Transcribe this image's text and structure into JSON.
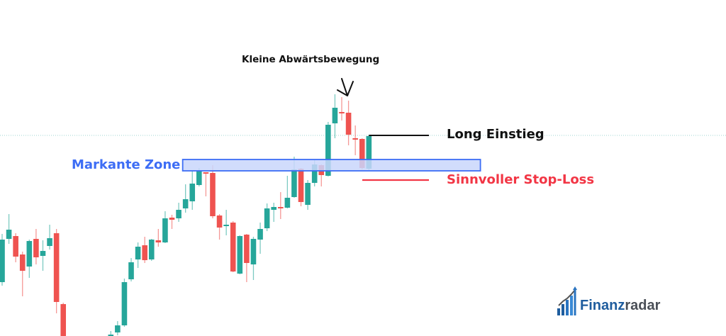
{
  "chart_data": {
    "type": "candlestick",
    "title": "",
    "xlabel": "",
    "ylabel": "",
    "grid": false,
    "colors": {
      "up": "#26a69a",
      "down": "#ef5350",
      "zone_fill": "#c9d6fb",
      "zone_stroke": "#3d6df5",
      "entry_line": "#111111",
      "stop_line": "#f23645",
      "price_line": "#9fd6d0"
    },
    "ylim": [
      0,
      500
    ],
    "candles": [
      [
        102,
        170,
        97,
        162
      ],
      [
        163,
        198,
        156,
        176
      ],
      [
        167,
        171,
        130,
        138
      ],
      [
        141,
        145,
        82,
        118
      ],
      [
        124,
        162,
        108,
        160
      ],
      [
        163,
        177,
        127,
        137
      ],
      [
        139,
        161,
        118,
        146
      ],
      [
        153,
        183,
        148,
        164
      ],
      [
        171,
        177,
        58,
        74
      ],
      [
        71,
        73,
        10,
        20
      ],
      null,
      null,
      null,
      null,
      null,
      null,
      [
        22,
        33,
        18,
        28
      ],
      [
        31,
        47,
        27,
        41
      ],
      [
        41,
        107,
        39,
        102
      ],
      [
        106,
        136,
        103,
        130
      ],
      [
        134,
        158,
        122,
        152
      ],
      [
        154,
        166,
        129,
        133
      ],
      [
        134,
        163,
        132,
        162
      ],
      [
        161,
        177,
        152,
        158
      ],
      [
        158,
        202,
        157,
        192
      ],
      [
        193,
        197,
        177,
        190
      ],
      [
        192,
        214,
        187,
        204
      ],
      [
        206,
        240,
        200,
        219
      ],
      [
        216,
        260,
        204,
        241
      ],
      [
        239,
        263,
        237,
        259
      ],
      [
        257,
        257,
        223,
        256
      ],
      [
        256,
        267,
        192,
        195
      ],
      [
        196,
        198,
        162,
        179
      ],
      [
        182,
        204,
        168,
        183
      ],
      [
        186,
        188,
        116,
        117
      ],
      [
        114,
        168,
        113,
        167
      ],
      [
        169,
        170,
        102,
        129
      ],
      [
        127,
        166,
        105,
        163
      ],
      [
        162,
        186,
        142,
        177
      ],
      [
        178,
        213,
        174,
        206
      ],
      [
        204,
        214,
        187,
        208
      ],
      [
        208,
        229,
        191,
        206
      ],
      [
        207,
        252,
        206,
        221
      ],
      [
        222,
        279,
        221,
        261
      ],
      [
        262,
        263,
        209,
        215
      ],
      [
        211,
        246,
        204,
        242
      ],
      [
        242,
        274,
        237,
        268
      ],
      [
        267,
        268,
        237,
        253
      ],
      [
        252,
        328,
        251,
        324
      ],
      [
        326,
        367,
        305,
        348
      ],
      [
        342,
        363,
        330,
        340
      ],
      [
        341,
        358,
        295,
        310
      ],
      [
        305,
        323,
        281,
        303
      ],
      [
        304,
        305,
        261,
        263
      ],
      [
        262,
        309,
        260,
        308
      ]
    ],
    "candle_format": [
      "open",
      "high",
      "low",
      "close"
    ],
    "zone": {
      "label": "Markante Zone",
      "from_index": 27,
      "to_index": 70,
      "low": 259,
      "high": 275
    },
    "current_price_line": 309,
    "entry": {
      "label": "Long Einstieg",
      "price": 309
    },
    "stop_loss": {
      "label": "Sinnvoller Stop-Loss",
      "price": 246
    },
    "annotation": {
      "label": "Kleine Abwärtsbewegung",
      "target_index": 50
    }
  },
  "logo": {
    "part1": "Finanz",
    "part2": "radar"
  }
}
